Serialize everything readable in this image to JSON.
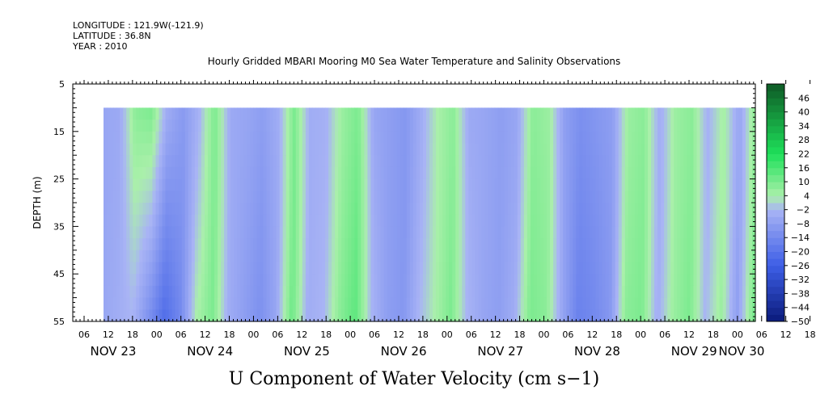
{
  "header": {
    "longitude": "LONGITUDE : 121.9W(-121.9)",
    "latitude": "LATITUDE : 36.8N",
    "year": "YEAR : 2010"
  },
  "chart_data": {
    "type": "heatmap",
    "title": "Hourly Gridded MBARI Mooring M0 Sea Water Temperature and Salinity Observations",
    "xlabel": "U Component of Water Velocity (cm s−1)",
    "ylabel": "DEPTH (m)",
    "ylim": [
      5,
      55
    ],
    "y_ticks": [
      5,
      15,
      25,
      35,
      45,
      55
    ],
    "y_inverted": true,
    "x_hour_ticks": [
      "06",
      "12",
      "18",
      "00",
      "06",
      "12",
      "18",
      "00",
      "06",
      "12",
      "18",
      "00",
      "06",
      "12",
      "18",
      "00",
      "06",
      "12",
      "18",
      "00",
      "06",
      "12",
      "18",
      "00",
      "06",
      "12",
      "18",
      "00",
      "06",
      "12",
      "18",
      "00"
    ],
    "x_day_labels": [
      "NOV 23",
      "NOV 24",
      "NOV 25",
      "NOV 26",
      "NOV 27",
      "NOV 28",
      "NOV 29",
      "NOV 30"
    ],
    "data_depth_range": [
      10,
      55
    ],
    "colorbar": {
      "levels": [
        -50,
        -44,
        -38,
        -32,
        -26,
        -20,
        -14,
        -8,
        -2,
        4,
        10,
        16,
        22,
        28,
        34,
        40,
        46
      ],
      "range": [
        -50,
        52
      ]
    },
    "colors": {
      "strong_negative": "#0a1a7a",
      "negative": "#3d5ee6",
      "weak_negative": "#a9b4f5",
      "weak_positive": "#aaf0aa",
      "positive": "#1ee05a",
      "strong_positive": "#0e5a26"
    },
    "u_profile_surface": [
      -6,
      -5,
      8,
      10,
      -4,
      -9,
      -3,
      10,
      -5,
      -6,
      -8,
      -4,
      10,
      -4,
      -3,
      6,
      10,
      -6,
      -8,
      -10,
      -4,
      4,
      8,
      -5,
      -6,
      -8,
      -6,
      8,
      6,
      -8,
      -12,
      -10,
      -8,
      6,
      8,
      -4,
      6,
      8,
      -3,
      5,
      -6,
      8
    ],
    "u_profile_bottom": [
      -6,
      -4,
      -2,
      -12,
      -22,
      -14,
      4,
      10,
      -4,
      -8,
      -12,
      -6,
      12,
      -4,
      -2,
      8,
      14,
      -2,
      -8,
      -10,
      -2,
      4,
      10,
      -2,
      -6,
      -8,
      -4,
      10,
      8,
      -6,
      -16,
      -14,
      -10,
      8,
      10,
      -4,
      6,
      10,
      -2,
      6,
      -8,
      10
    ]
  }
}
